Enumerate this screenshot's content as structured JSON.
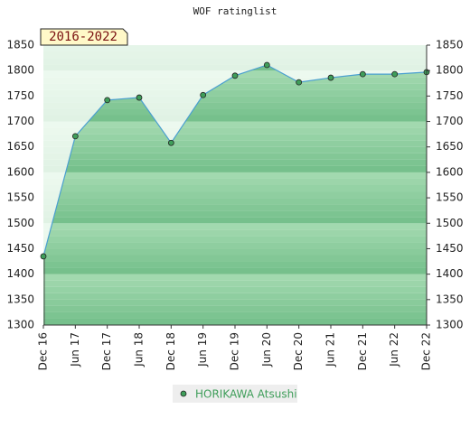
{
  "chart_data": {
    "type": "area",
    "title": "WOF ratinglist",
    "annotation": "2016-2022",
    "categories": [
      "Dec 16",
      "Jun 17",
      "Dec 17",
      "Jun 18",
      "Dec 18",
      "Jun 19",
      "Dec 19",
      "Jun 20",
      "Dec 20",
      "Jun 21",
      "Dec 21",
      "Jun 22",
      "Dec 22"
    ],
    "series": [
      {
        "name": "HORIKAWA Atsushi",
        "color": "#4a9fd0",
        "values": [
          1435,
          1671,
          1742,
          1747,
          1658,
          1752,
          1790,
          1811,
          1777,
          1786,
          1793,
          1793,
          1797
        ]
      }
    ],
    "ylim": [
      1300,
      1850
    ],
    "yticks": [
      1300,
      1350,
      1400,
      1450,
      1500,
      1550,
      1600,
      1650,
      1700,
      1750,
      1800,
      1850
    ]
  }
}
